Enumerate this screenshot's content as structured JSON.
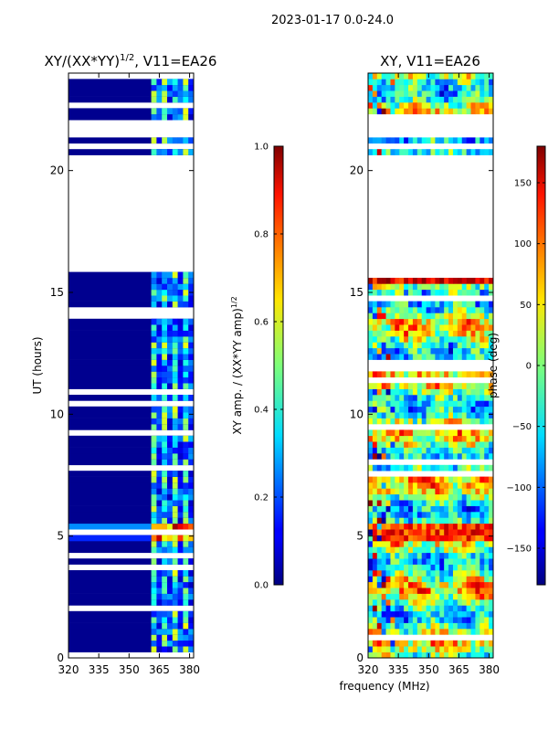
{
  "figure": {
    "suptitle": "2023-01-17 0.0-24.0",
    "shared_xlabel": "frequency (MHz)"
  },
  "chart_data": [
    {
      "type": "heatmap",
      "title": "XY/(XX*YY)",
      "title_sup": "1/2",
      "title_suffix": ", V11=EA26",
      "xlabel": "",
      "ylabel": "UT (hours)",
      "xlim": [
        320,
        382
      ],
      "ylim": [
        0,
        24
      ],
      "xticks": [
        "320",
        "335",
        "350",
        "365",
        "380"
      ],
      "xtick_values": [
        320,
        335,
        350,
        365,
        380
      ],
      "yticks": [
        "0",
        "5",
        "10",
        "15",
        "20"
      ],
      "ytick_values": [
        0,
        5,
        10,
        15,
        20
      ],
      "colorbar": {
        "label": "XY amp. / (XX*YY amp)",
        "label_sup": "1/2",
        "range": [
          0.0,
          1.0
        ],
        "ticks": [
          "0.0",
          "0.2",
          "0.4",
          "0.6",
          "0.8",
          "1.0"
        ],
        "tick_values": [
          0.0,
          0.2,
          0.4,
          0.6,
          0.8,
          1.0
        ],
        "colormap": "jet"
      },
      "blank_time_ranges": [
        [
          15.7,
          20.5
        ],
        [
          20.8,
          21.0
        ],
        [
          21.2,
          22.0
        ]
      ],
      "rfi_band_mhz": [
        361,
        382
      ],
      "rfi_event_hours": [
        4.6,
        5.5
      ]
    },
    {
      "type": "heatmap",
      "title": "XY, V11=EA26",
      "xlabel": "frequency (MHz)",
      "ylabel": "",
      "xlim": [
        320,
        382
      ],
      "ylim": [
        0,
        24
      ],
      "xticks": [
        "320",
        "335",
        "350",
        "365",
        "380"
      ],
      "xtick_values": [
        320,
        335,
        350,
        365,
        380
      ],
      "yticks": [
        "0",
        "5",
        "10",
        "15",
        "20"
      ],
      "ytick_values": [
        0,
        5,
        10,
        15,
        20
      ],
      "colorbar": {
        "label": "phase (deg)",
        "range": [
          -180,
          180
        ],
        "ticks": [
          "−150",
          "−100",
          "−50",
          "0",
          "50",
          "100",
          "150"
        ],
        "tick_values": [
          -150,
          -100,
          -50,
          0,
          50,
          100,
          150
        ],
        "colormap": "jet"
      },
      "blank_time_ranges": [
        [
          15.7,
          20.5
        ],
        [
          20.8,
          21.0
        ],
        [
          21.2,
          22.0
        ]
      ],
      "rfi_event_hours": [
        4.6,
        5.5
      ]
    }
  ]
}
